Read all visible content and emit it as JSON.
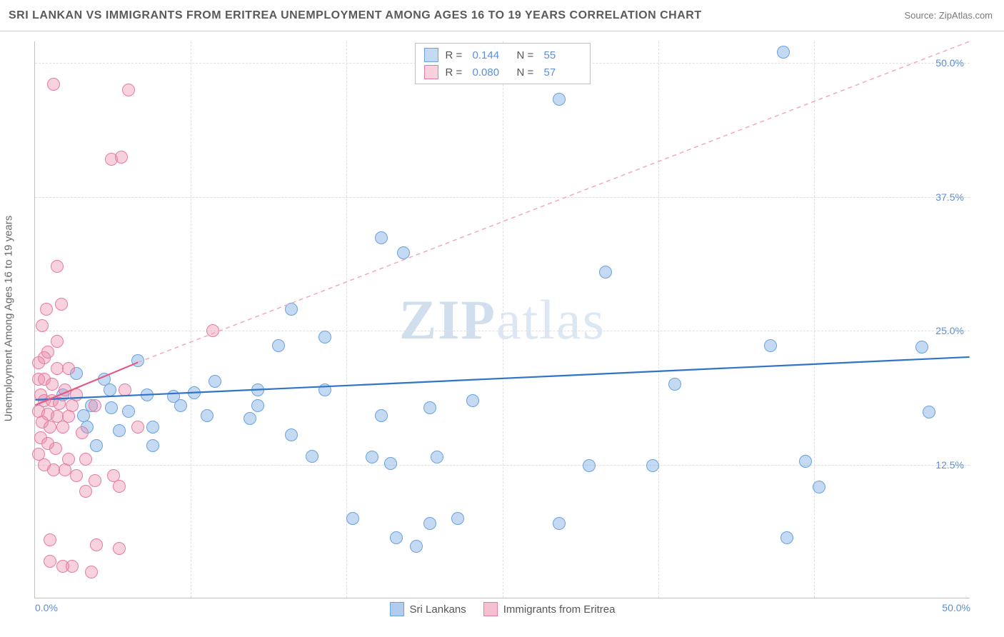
{
  "header": {
    "title": "SRI LANKAN VS IMMIGRANTS FROM ERITREA UNEMPLOYMENT AMONG AGES 16 TO 19 YEARS CORRELATION CHART",
    "source": "Source: ZipAtlas.com"
  },
  "chart": {
    "type": "scatter",
    "y_axis_label": "Unemployment Among Ages 16 to 19 years",
    "watermark_bold": "ZIP",
    "watermark_rest": "atlas",
    "xlim": [
      0,
      50
    ],
    "ylim": [
      0,
      52
    ],
    "x_ticks": [
      {
        "v": 0.0,
        "label": "0.0%"
      },
      {
        "v": 50.0,
        "label": "50.0%"
      }
    ],
    "y_ticks": [
      {
        "v": 12.5,
        "label": "12.5%"
      },
      {
        "v": 25.0,
        "label": "25.0%"
      },
      {
        "v": 37.5,
        "label": "37.5%"
      },
      {
        "v": 50.0,
        "label": "50.0%"
      }
    ],
    "v_gridlines": [
      8.33,
      16.66,
      25.0,
      33.33,
      41.66
    ],
    "grid_color": "#e0e0e0",
    "background_color": "#ffffff",
    "point_radius": 9,
    "series": [
      {
        "name": "Sri Lankans",
        "fill": "rgba(124,172,229,0.45)",
        "stroke": "#6aa1de",
        "line_stroke": "#2f74c6",
        "line_width": 2.2,
        "line_dash": "none",
        "R": "0.144",
        "N": "55",
        "trend": {
          "x1": 0,
          "y1": 18.5,
          "x2": 50,
          "y2": 22.5
        },
        "points": [
          [
            40.0,
            51.0
          ],
          [
            28.0,
            46.6
          ],
          [
            40.2,
            5.7
          ],
          [
            18.5,
            33.7
          ],
          [
            19.7,
            32.3
          ],
          [
            30.5,
            30.5
          ],
          [
            39.3,
            23.6
          ],
          [
            47.4,
            23.5
          ],
          [
            15.5,
            24.4
          ],
          [
            29.6,
            12.4
          ],
          [
            13.0,
            23.6
          ],
          [
            5.5,
            22.2
          ],
          [
            34.2,
            20.0
          ],
          [
            7.4,
            18.9
          ],
          [
            8.5,
            19.2
          ],
          [
            9.6,
            20.3
          ],
          [
            11.9,
            19.5
          ],
          [
            15.5,
            19.5
          ],
          [
            23.4,
            18.5
          ],
          [
            4.1,
            17.8
          ],
          [
            9.2,
            17.1
          ],
          [
            11.5,
            16.8
          ],
          [
            11.9,
            18.0
          ],
          [
            13.7,
            27.0
          ],
          [
            47.8,
            17.4
          ],
          [
            2.6,
            17.1
          ],
          [
            3.7,
            20.5
          ],
          [
            4.5,
            15.7
          ],
          [
            6.3,
            16.0
          ],
          [
            7.8,
            18.0
          ],
          [
            13.7,
            15.3
          ],
          [
            18.5,
            17.1
          ],
          [
            21.1,
            17.8
          ],
          [
            3.3,
            14.3
          ],
          [
            6.3,
            14.3
          ],
          [
            14.8,
            13.3
          ],
          [
            18.0,
            13.2
          ],
          [
            19.0,
            12.6
          ],
          [
            21.5,
            13.2
          ],
          [
            33.0,
            12.4
          ],
          [
            41.2,
            12.8
          ],
          [
            41.9,
            10.4
          ],
          [
            17.0,
            7.5
          ],
          [
            21.1,
            7.0
          ],
          [
            22.6,
            7.5
          ],
          [
            28.0,
            7.0
          ],
          [
            19.3,
            5.7
          ],
          [
            20.4,
            4.9
          ],
          [
            1.5,
            19.0
          ],
          [
            2.2,
            21.0
          ],
          [
            3.0,
            18.0
          ],
          [
            4.0,
            19.5
          ],
          [
            5.0,
            17.5
          ],
          [
            6.0,
            19.0
          ],
          [
            2.8,
            16.0
          ]
        ]
      },
      {
        "name": "Immigrants from Eritrea",
        "fill": "rgba(236,140,170,0.4)",
        "stroke": "#e77ba0",
        "line_stroke": "#e25b87",
        "line_width": 2.2,
        "line_dash": "none",
        "dash_extension": true,
        "dash_stroke": "#f2a8c0",
        "R": "0.080",
        "N": "57",
        "trend": {
          "x1": 0,
          "y1": 18.0,
          "x2": 5.5,
          "y2": 22.0
        },
        "dash_trend": {
          "x1": 5.5,
          "y1": 22.0,
          "x2": 50,
          "y2": 52.0
        },
        "points": [
          [
            1.0,
            48.0
          ],
          [
            5.0,
            47.5
          ],
          [
            4.1,
            41.0
          ],
          [
            4.6,
            41.2
          ],
          [
            1.2,
            31.0
          ],
          [
            0.6,
            27.0
          ],
          [
            1.4,
            27.5
          ],
          [
            0.4,
            25.5
          ],
          [
            9.5,
            25.0
          ],
          [
            1.2,
            24.0
          ],
          [
            0.5,
            22.5
          ],
          [
            0.2,
            22.0
          ],
          [
            0.7,
            23.0
          ],
          [
            1.2,
            21.5
          ],
          [
            1.8,
            21.5
          ],
          [
            4.8,
            19.5
          ],
          [
            0.2,
            20.5
          ],
          [
            0.5,
            20.5
          ],
          [
            0.9,
            20.0
          ],
          [
            1.6,
            19.5
          ],
          [
            2.2,
            19.0
          ],
          [
            0.3,
            19.0
          ],
          [
            0.5,
            18.5
          ],
          [
            0.9,
            18.5
          ],
          [
            1.3,
            18.2
          ],
          [
            2.0,
            18.0
          ],
          [
            3.2,
            18.0
          ],
          [
            0.2,
            17.5
          ],
          [
            0.7,
            17.2
          ],
          [
            1.2,
            17.0
          ],
          [
            1.8,
            17.0
          ],
          [
            5.5,
            16.0
          ],
          [
            0.4,
            16.5
          ],
          [
            0.8,
            16.0
          ],
          [
            1.5,
            16.0
          ],
          [
            2.5,
            15.5
          ],
          [
            0.3,
            15.0
          ],
          [
            0.7,
            14.5
          ],
          [
            1.1,
            14.0
          ],
          [
            0.2,
            13.5
          ],
          [
            1.8,
            13.0
          ],
          [
            2.7,
            13.0
          ],
          [
            0.5,
            12.5
          ],
          [
            1.0,
            12.0
          ],
          [
            1.6,
            12.0
          ],
          [
            2.2,
            11.5
          ],
          [
            3.2,
            11.0
          ],
          [
            4.2,
            11.5
          ],
          [
            4.5,
            10.5
          ],
          [
            2.7,
            10.0
          ],
          [
            0.8,
            5.5
          ],
          [
            3.3,
            5.0
          ],
          [
            4.5,
            4.7
          ],
          [
            0.8,
            3.5
          ],
          [
            1.5,
            3.0
          ],
          [
            2.0,
            3.0
          ],
          [
            3.0,
            2.5
          ]
        ]
      }
    ]
  },
  "legend_bottom": [
    {
      "label": "Sri Lankans",
      "fill": "rgba(124,172,229,0.6)",
      "stroke": "#6aa1de"
    },
    {
      "label": "Immigrants from Eritrea",
      "fill": "rgba(236,140,170,0.55)",
      "stroke": "#e77ba0"
    }
  ],
  "legend_top_labels": {
    "R": "R  =",
    "N": "N  ="
  }
}
